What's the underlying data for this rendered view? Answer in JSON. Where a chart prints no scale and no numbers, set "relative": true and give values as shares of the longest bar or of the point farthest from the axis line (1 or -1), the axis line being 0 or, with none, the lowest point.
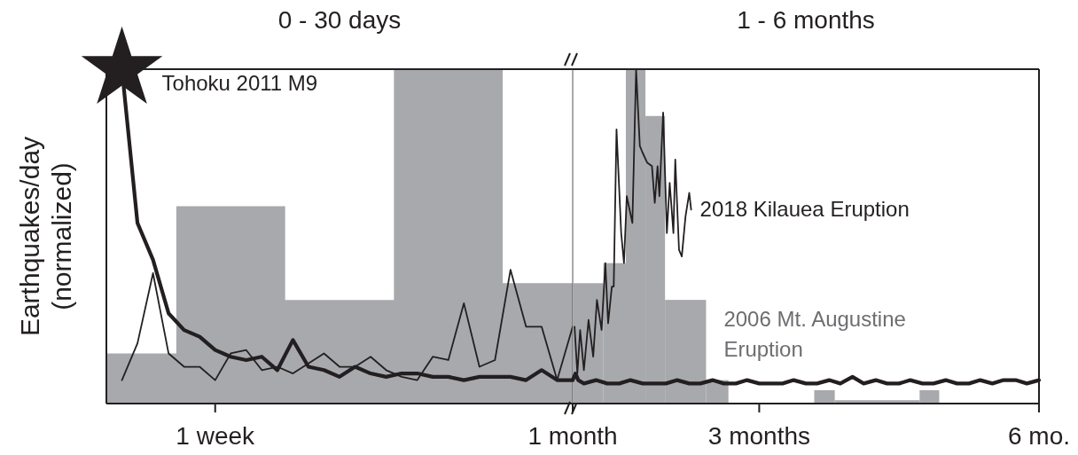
{
  "chart_data": [
    {
      "type": "line",
      "title": "0 - 30 days",
      "ylabel": "Earthquakes/day (normalized)",
      "relative": true,
      "categories": [
        null,
        null,
        null,
        null,
        null,
        null,
        null,
        "1 week",
        null,
        null,
        null,
        null,
        null,
        null,
        null,
        null,
        null,
        null,
        null,
        null,
        null,
        null,
        null,
        null,
        null,
        null,
        null,
        null,
        null,
        null,
        "1 month"
      ],
      "series": [
        {
          "type": "area",
          "color": "#a7a9ac",
          "values": [
            0.15,
            0.15,
            0.15,
            0.15,
            0.15,
            0.59,
            0.59,
            0.59,
            0.59,
            0.59,
            0.59,
            0.59,
            0.31,
            0.31,
            0.31,
            0.31,
            0.31,
            0.31,
            0.31,
            1.0,
            1.0,
            1.0,
            1.0,
            1.0,
            1.0,
            1.0,
            0.36,
            0.36,
            0.36,
            0.36,
            0.36
          ]
        },
        {
          "color": "#231f20",
          "values": [
            null,
            0.07,
            0.18,
            0.39,
            0.15,
            0.11,
            0.11,
            0.07,
            0.15,
            0.16,
            0.1,
            0.11,
            0.09,
            0.12,
            0.15,
            0.11,
            0.11,
            0.14,
            0.1,
            0.08,
            0.07,
            0.14,
            0.13,
            0.3,
            0.11,
            0.13,
            0.4,
            0.23,
            0.23,
            0.07,
            0.23
          ]
        },
        {
          "color": "#231f20",
          "values": [
            null,
            1.0,
            0.54,
            0.43,
            0.27,
            0.22,
            0.2,
            0.16,
            0.14,
            0.13,
            0.14,
            0.1,
            0.19,
            0.11,
            0.1,
            0.08,
            0.11,
            0.09,
            0.08,
            0.09,
            0.09,
            0.08,
            0.08,
            0.07,
            0.08,
            0.08,
            0.08,
            0.07,
            0.1,
            0.07,
            0.07
          ]
        },
        {
          "type": "scatter",
          "name": "Tohoku 2011 M9",
          "color": "#231f20",
          "marker": "star",
          "values": [
            null,
            1.0,
            null,
            null,
            null,
            null,
            null,
            null,
            null,
            null,
            null,
            null,
            null,
            null,
            null,
            null,
            null,
            null,
            null,
            null,
            null,
            null,
            null,
            null,
            null,
            null,
            null,
            null,
            null,
            null,
            null
          ]
        }
      ]
    },
    {
      "type": "line",
      "title": "1 - 6 months",
      "relative": true,
      "xlim": [
        1,
        6
      ],
      "xticks": [
        {
          "value": 3,
          "label": "3 months"
        },
        {
          "value": 6,
          "label": "6 mo."
        }
      ],
      "series": [
        {
          "type": "histogram",
          "name": "2006 Mt. Augustine Eruption",
          "color": "#a7a9ac",
          "bins": [
            1,
            1.33,
            1.57,
            1.78,
            1.99,
            2.43,
            2.67,
            3.59,
            3.81,
            4.72,
            4.93
          ],
          "values": [
            0.36,
            0.42,
            1.0,
            0.86,
            0.31,
            0.07,
            0,
            0.04,
            0.01,
            0.04
          ]
        },
        {
          "name": "2018 Kilauea Eruption",
          "color": "#231f20",
          "x": [
            1.02,
            1.05,
            1.08,
            1.12,
            1.17,
            1.22,
            1.26,
            1.31,
            1.35,
            1.38,
            1.42,
            1.44,
            1.47,
            1.52,
            1.55,
            1.58,
            1.64,
            1.68,
            1.72,
            1.75,
            1.8,
            1.85,
            1.88,
            1.91,
            1.93,
            1.97,
            2.01,
            2.04,
            2.08,
            2.1,
            2.14,
            2.17,
            2.21,
            2.25,
            2.27
          ],
          "values": [
            0.23,
            0.09,
            0.22,
            0.1,
            0.25,
            0.14,
            0.31,
            0.22,
            0.42,
            0.24,
            0.35,
            0.35,
            0.82,
            0.51,
            0.42,
            0.62,
            0.54,
            1.0,
            0.77,
            0.75,
            0.72,
            0.71,
            0.6,
            0.71,
            0.62,
            0.87,
            0.51,
            0.66,
            0.51,
            0.73,
            0.46,
            0.44,
            0.56,
            0.63,
            0.58
          ]
        },
        {
          "color": "#231f20",
          "x": [
            1,
            1.03,
            1.06,
            1.12,
            1.25,
            1.37,
            1.5,
            1.62,
            1.75,
            1.87,
            2,
            2.12,
            2.25,
            2.37,
            2.5,
            2.62,
            2.75,
            2.87,
            3,
            3.12,
            3.25,
            3.37,
            3.5,
            3.62,
            3.75,
            3.87,
            4,
            4.12,
            4.25,
            4.37,
            4.5,
            4.62,
            4.75,
            4.87,
            5,
            5.12,
            5.25,
            5.37,
            5.5,
            5.62,
            5.75,
            5.87,
            6
          ],
          "values": [
            0.07,
            0.09,
            0.07,
            0.06,
            0.07,
            0.06,
            0.06,
            0.07,
            0.06,
            0.06,
            0.06,
            0.07,
            0.06,
            0.06,
            0.07,
            0.06,
            0.06,
            0.07,
            0.06,
            0.06,
            0.06,
            0.07,
            0.06,
            0.06,
            0.07,
            0.06,
            0.08,
            0.06,
            0.07,
            0.06,
            0.06,
            0.07,
            0.06,
            0.06,
            0.07,
            0.06,
            0.06,
            0.07,
            0.06,
            0.07,
            0.07,
            0.06,
            0.07
          ]
        }
      ]
    }
  ]
}
